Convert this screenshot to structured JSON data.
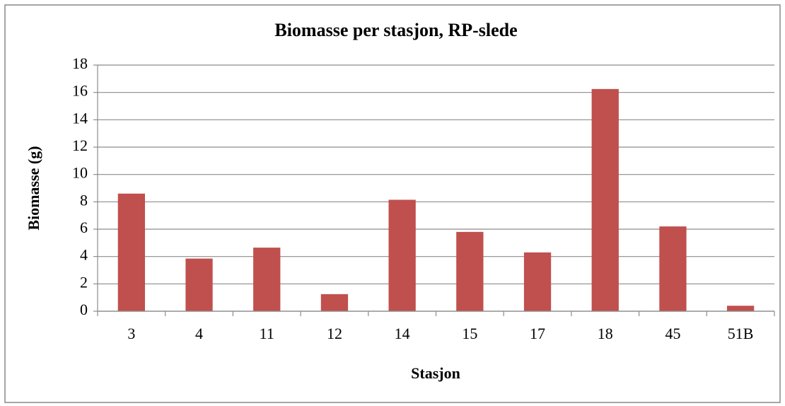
{
  "chart_data": {
    "type": "bar",
    "title": "Biomasse per stasjon, RP-slede",
    "x_label": "Stasjon",
    "y_label": "Biomasse (g)",
    "categories": [
      "3",
      "4",
      "11",
      "12",
      "14",
      "15",
      "17",
      "18",
      "45",
      "51B"
    ],
    "values": [
      8.6,
      3.85,
      4.65,
      1.25,
      8.15,
      5.8,
      4.3,
      16.25,
      6.2,
      0.4
    ],
    "color": "#c0504d",
    "ylim": [
      0,
      18
    ],
    "yticks": [
      0,
      2,
      4,
      6,
      8,
      10,
      12,
      14,
      16,
      18
    ],
    "grid": true
  }
}
